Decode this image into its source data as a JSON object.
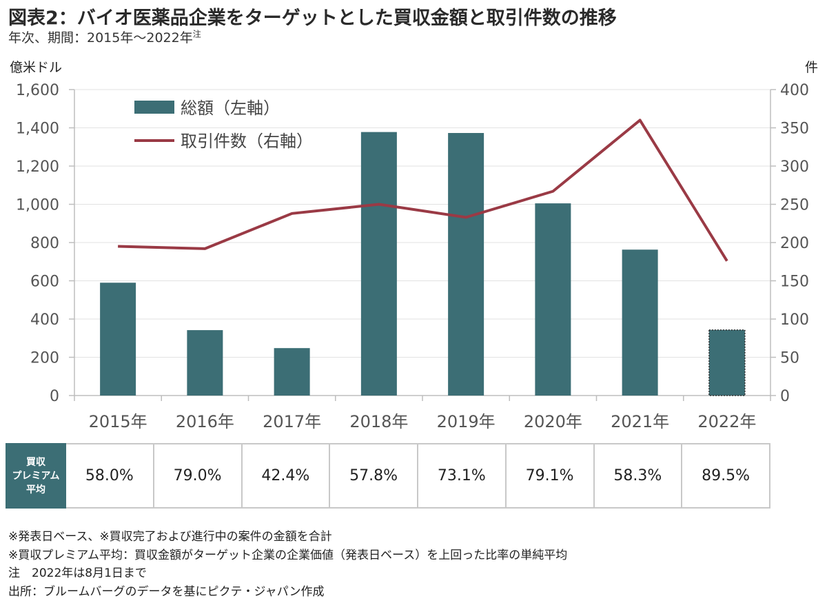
{
  "title": "図表2：バイオ医薬品企業をターゲットとした買収金額と取引件数の推移",
  "subtitle": "年次、期間：2015年～2022年",
  "subtitle_sup": "注",
  "chart_data": {
    "type": "bar+line",
    "categories": [
      "2015年",
      "2016年",
      "2017年",
      "2018年",
      "2019年",
      "2020年",
      "2021年",
      "2022年"
    ],
    "series": [
      {
        "name": "総額（左軸）",
        "type": "bar",
        "axis": "left",
        "color": "#3c6e75",
        "values": [
          590,
          342,
          248,
          1378,
          1373,
          1005,
          763,
          343
        ]
      },
      {
        "name": "取引件数（右軸）",
        "type": "line",
        "axis": "right",
        "color": "#9a3a45",
        "values": [
          195,
          192,
          238,
          250,
          233,
          267,
          360,
          176
        ]
      }
    ],
    "left_axis": {
      "label": "億米ドル",
      "min": 0,
      "max": 1600,
      "step": 200,
      "tick_labels": [
        "0",
        "200",
        "400",
        "600",
        "800",
        "1,000",
        "1,200",
        "1,400",
        "1,600"
      ]
    },
    "right_axis": {
      "label": "件",
      "min": 0,
      "max": 400,
      "step": 50,
      "tick_labels": [
        "0",
        "50",
        "100",
        "150",
        "200",
        "250",
        "300",
        "350",
        "400"
      ]
    },
    "grid": true,
    "legend": "top-left",
    "highlight_last_bar": "dashed-outline"
  },
  "table": {
    "header": [
      "買収",
      "プレミアム",
      "平均"
    ],
    "values": [
      "58.0%",
      "79.0%",
      "42.4%",
      "57.8%",
      "73.1%",
      "79.1%",
      "58.3%",
      "89.5%"
    ]
  },
  "notes": [
    "※発表日ベース、※買収完了および進行中の案件の金額を合計",
    "※買収プレミアム平均：買収金額がターゲット企業の企業価値（発表日ベース）を上回った比率の単純平均",
    "注　2022年は8月1日まで",
    "出所：ブルームバーグのデータを基にピクテ・ジャパン作成"
  ]
}
